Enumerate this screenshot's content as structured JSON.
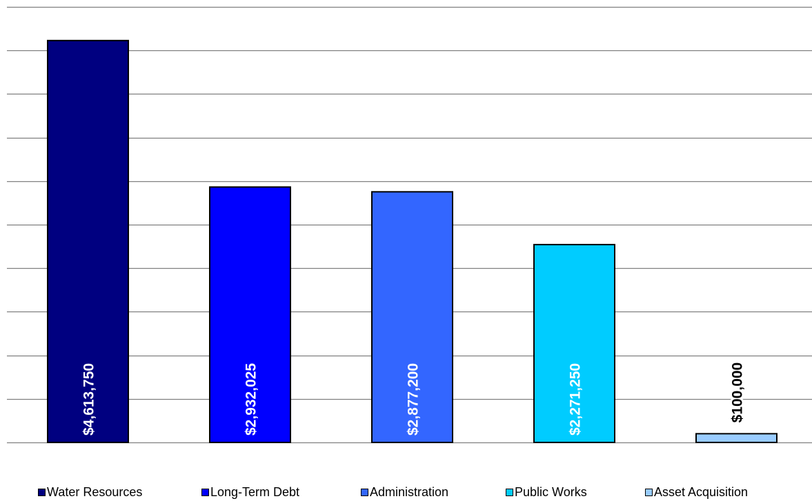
{
  "chart_data": {
    "type": "bar",
    "categories": [
      "Water Resources",
      "Long-Term Debt",
      "Administration",
      "Public Works",
      "Asset Acquisition"
    ],
    "values": [
      4613750,
      2932025,
      2877200,
      2271250,
      100000
    ],
    "data_labels": [
      "$4,613,750",
      "$2,932,025",
      "$2,877,200",
      "$2,271,250",
      "$100,000"
    ],
    "colors": [
      "#000080",
      "#0000FF",
      "#3366FF",
      "#00CCFF",
      "#99CCFF"
    ],
    "label_colors": [
      "#FFFFFF",
      "#FFFFFF",
      "#FFFFFF",
      "#FFFFFF",
      "#000000"
    ],
    "ylim": [
      0,
      5000000
    ],
    "ytick_step": 500000,
    "grid": true,
    "legend_position": "bottom",
    "title": "",
    "xlabel": "",
    "ylabel": ""
  },
  "legend": {
    "items": [
      {
        "label": "Water Resources",
        "color": "#000080"
      },
      {
        "label": "Long-Term Debt",
        "color": "#0000FF"
      },
      {
        "label": "Administration",
        "color": "#3366FF"
      },
      {
        "label": "Public Works",
        "color": "#00CCFF"
      },
      {
        "label": "Asset Acquisition",
        "color": "#99CCFF"
      }
    ]
  }
}
